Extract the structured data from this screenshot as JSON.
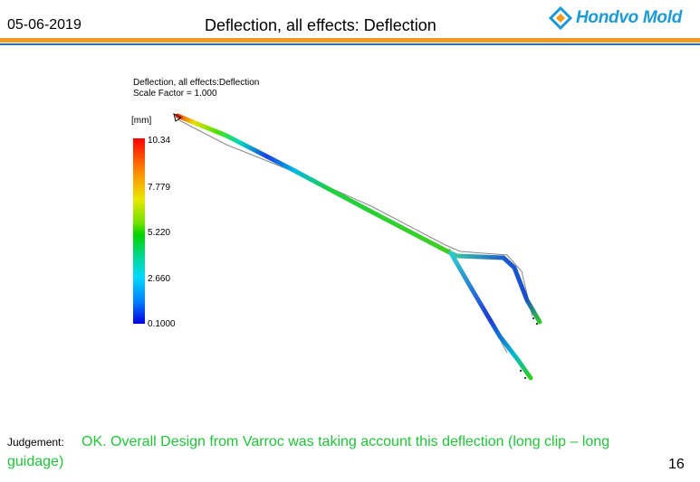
{
  "header": {
    "date": "05-06-2019",
    "title": "Deflection, all effects: Deflection",
    "logo_text": "Hondvo Mold",
    "accent_orange": "#f29a1f",
    "accent_blue": "#2a6db5"
  },
  "plot": {
    "title_line1": "Deflection, all effects:Deflection",
    "title_line2": "Scale Factor = 1.000",
    "legend_unit": "[mm]",
    "legend_ticks": [
      "10.34",
      "7.779",
      "5.220",
      "2.660",
      "0.1000"
    ]
  },
  "judgement": {
    "label": "Judgement:",
    "text": "OK. Overall Design from Varroc was taking account this deflection (long clip – long guidage)",
    "color": "#22c43a"
  },
  "page_number": "16"
}
